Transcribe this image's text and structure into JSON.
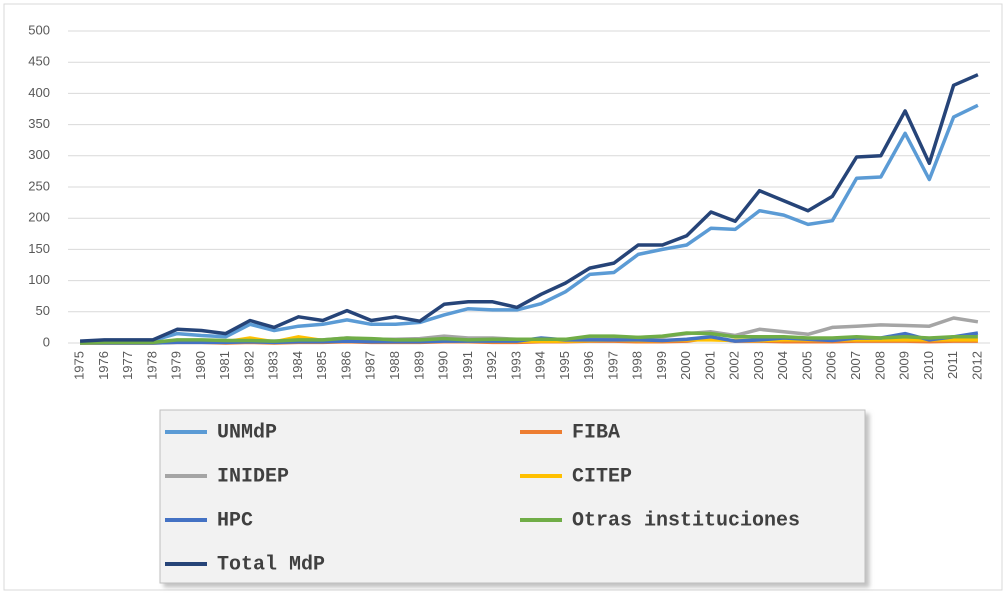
{
  "chart_data": {
    "type": "line",
    "categories": [
      "1975",
      "1976",
      "1977",
      "1978",
      "1979",
      "1980",
      "1981",
      "1982",
      "1983",
      "1984",
      "1985",
      "1986",
      "1987",
      "1988",
      "1989",
      "1990",
      "1991",
      "1992",
      "1993",
      "1994",
      "1995",
      "1996",
      "1997",
      "1998",
      "1999",
      "2000",
      "2001",
      "2002",
      "2003",
      "2004",
      "2005",
      "2006",
      "2007",
      "2008",
      "2009",
      "2010",
      "2011",
      "2012"
    ],
    "series": [
      {
        "name": "UNMdP",
        "color": "#5b9bd5",
        "values": [
          2,
          3,
          4,
          4,
          15,
          12,
          10,
          30,
          20,
          27,
          30,
          37,
          30,
          30,
          33,
          45,
          55,
          53,
          53,
          63,
          82,
          110,
          113,
          142,
          150,
          157,
          184,
          182,
          212,
          205,
          190,
          196,
          264,
          266,
          336,
          262,
          362,
          381
        ]
      },
      {
        "name": "FIBA",
        "color": "#ed7d31",
        "values": [
          0,
          0,
          0,
          0,
          1,
          1,
          0,
          1,
          0,
          1,
          1,
          2,
          1,
          1,
          1,
          2,
          2,
          1,
          1,
          2,
          2,
          3,
          3,
          2,
          2,
          3,
          8,
          3,
          3,
          2,
          2,
          2,
          3,
          3,
          3,
          2,
          3,
          3
        ]
      },
      {
        "name": "INIDEP",
        "color": "#a5a5a5",
        "values": [
          0,
          1,
          1,
          1,
          3,
          3,
          3,
          3,
          3,
          3,
          5,
          8,
          6,
          6,
          7,
          11,
          8,
          8,
          6,
          6,
          5,
          8,
          9,
          9,
          10,
          15,
          18,
          12,
          22,
          18,
          14,
          25,
          27,
          29,
          28,
          27,
          40,
          34
        ]
      },
      {
        "name": "CITEP",
        "color": "#ffc000",
        "values": [
          0,
          0,
          0,
          0,
          2,
          2,
          2,
          8,
          2,
          10,
          4,
          5,
          3,
          4,
          3,
          4,
          3,
          3,
          3,
          3,
          3,
          4,
          5,
          4,
          4,
          5,
          5,
          4,
          4,
          5,
          5,
          5,
          5,
          5,
          5,
          5,
          5,
          5
        ]
      },
      {
        "name": "HPC",
        "color": "#4472c4",
        "values": [
          0,
          0,
          0,
          0,
          1,
          1,
          1,
          2,
          1,
          2,
          2,
          3,
          2,
          2,
          2,
          3,
          3,
          3,
          3,
          8,
          5,
          5,
          5,
          5,
          4,
          6,
          10,
          3,
          5,
          8,
          6,
          4,
          8,
          8,
          15,
          5,
          10,
          16
        ]
      },
      {
        "name": "Otras instituciones",
        "color": "#70ad47",
        "values": [
          0,
          1,
          1,
          1,
          5,
          5,
          4,
          4,
          3,
          5,
          5,
          8,
          7,
          5,
          5,
          7,
          5,
          6,
          6,
          6,
          6,
          11,
          11,
          9,
          11,
          16,
          15,
          10,
          10,
          10,
          8,
          8,
          10,
          8,
          10,
          8,
          10,
          10
        ]
      },
      {
        "name": "Total MdP",
        "color": "#264478",
        "values": [
          3,
          5,
          5,
          5,
          22,
          20,
          15,
          36,
          25,
          42,
          36,
          52,
          36,
          42,
          35,
          62,
          66,
          66,
          57,
          78,
          96,
          120,
          128,
          157,
          157,
          172,
          210,
          195,
          244,
          228,
          212,
          235,
          298,
          300,
          372,
          288,
          413,
          430
        ]
      }
    ],
    "ylim": [
      0,
      500
    ],
    "yticks": [
      0,
      50,
      100,
      150,
      200,
      250,
      300,
      350,
      400,
      450,
      500
    ],
    "grid": true
  }
}
